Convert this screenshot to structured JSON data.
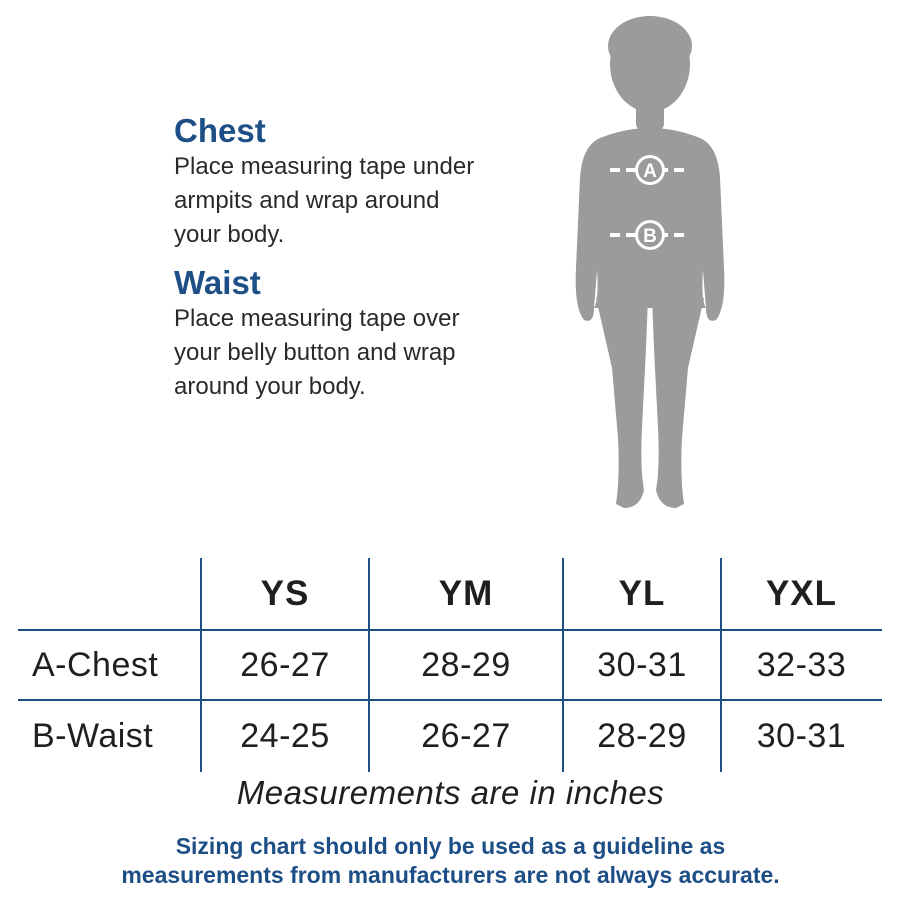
{
  "colors": {
    "accent": "#1d4f86",
    "text": "#1f1f1f",
    "silhouette": "#9b9b9b",
    "table_lines": "#1d4f86"
  },
  "instructions": {
    "chest_heading": "Chest",
    "chest_text": "Place measuring tape under armpits and wrap around your body.",
    "chest_lines": [
      "Place measuring tape under",
      "armpits and wrap around",
      "your body."
    ],
    "waist_heading": "Waist",
    "waist_lines": [
      "Place measuring tape over",
      "your belly button and wrap",
      "around your body."
    ]
  },
  "figure": {
    "icon": "child-silhouette-icon",
    "marker_a": "A",
    "marker_b": "B"
  },
  "table": {
    "columns": [
      "YS",
      "YM",
      "YL",
      "YXL"
    ],
    "rows": [
      {
        "label": "A-Chest",
        "values": [
          "26-27",
          "28-29",
          "30-31",
          "32-33"
        ]
      },
      {
        "label": "B-Waist",
        "values": [
          "24-25",
          "26-27",
          "28-29",
          "30-31"
        ]
      }
    ]
  },
  "units_note": "Measurements are in inches",
  "disclaimer": {
    "line1": "Sizing chart should only be used as a guideline as",
    "line2": "measurements from manufacturers are not always accurate."
  }
}
